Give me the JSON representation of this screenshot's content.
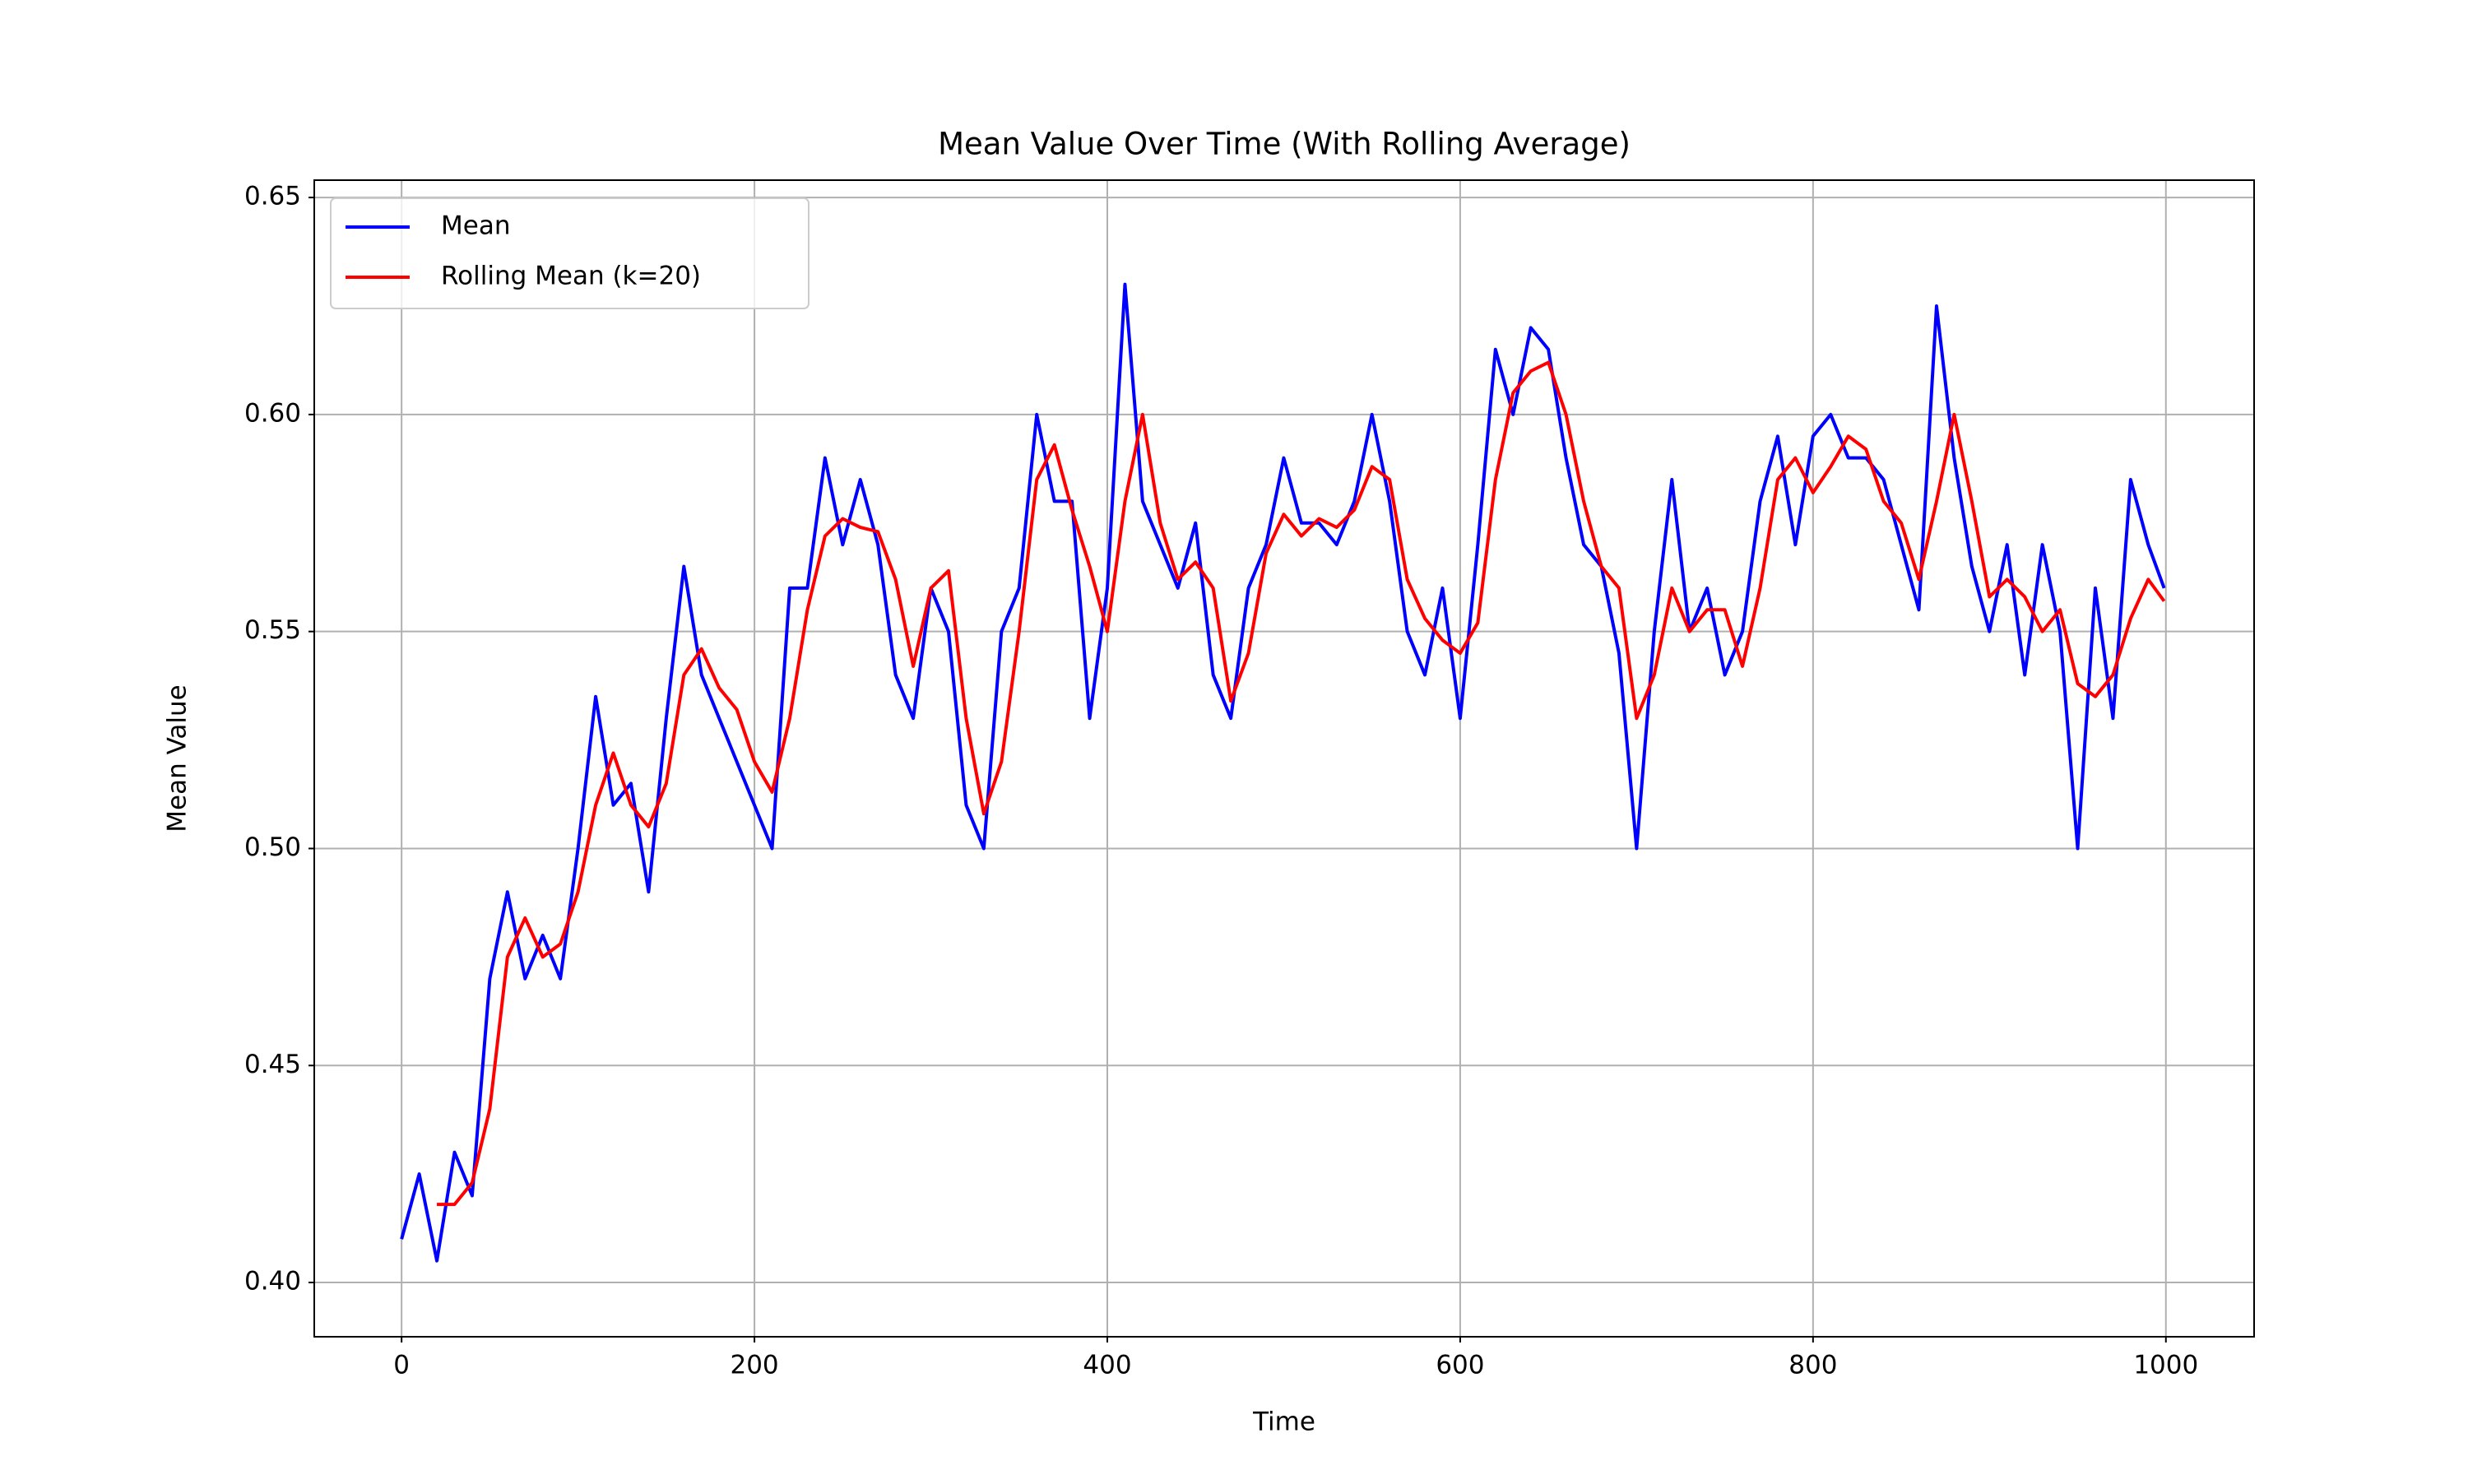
{
  "chart_data": {
    "type": "line",
    "title": "Mean Value Over Time (With Rolling Average)",
    "xlabel": "Time",
    "ylabel": "Mean Value",
    "x": [
      0,
      10,
      20,
      30,
      40,
      50,
      60,
      70,
      80,
      90,
      100,
      110,
      120,
      130,
      140,
      150,
      160,
      170,
      180,
      190,
      200,
      210,
      220,
      230,
      240,
      250,
      260,
      270,
      280,
      290,
      300,
      310,
      320,
      330,
      340,
      350,
      360,
      370,
      380,
      390,
      400,
      410,
      420,
      430,
      440,
      450,
      460,
      470,
      480,
      490,
      500,
      510,
      520,
      530,
      540,
      550,
      560,
      570,
      580,
      590,
      600,
      610,
      620,
      630,
      640,
      650,
      660,
      670,
      680,
      690,
      700,
      710,
      720,
      730,
      740,
      750,
      760,
      770,
      780,
      790,
      800,
      810,
      820,
      830,
      840,
      850,
      860,
      870,
      880,
      890,
      900,
      910,
      920,
      930,
      940,
      950,
      960,
      970,
      980,
      990,
      999
    ],
    "series": [
      {
        "name": "Mean",
        "color": "#0000ff",
        "values": [
          0.41,
          0.425,
          0.405,
          0.43,
          0.42,
          0.47,
          0.49,
          0.47,
          0.48,
          0.47,
          0.5,
          0.535,
          0.51,
          0.515,
          0.49,
          0.53,
          0.565,
          0.54,
          0.53,
          0.52,
          0.51,
          0.5,
          0.56,
          0.56,
          0.59,
          0.57,
          0.585,
          0.57,
          0.54,
          0.53,
          0.56,
          0.55,
          0.51,
          0.5,
          0.55,
          0.56,
          0.6,
          0.58,
          0.58,
          0.53,
          0.56,
          0.63,
          0.58,
          0.57,
          0.56,
          0.575,
          0.54,
          0.53,
          0.56,
          0.57,
          0.59,
          0.575,
          0.575,
          0.57,
          0.58,
          0.6,
          0.58,
          0.55,
          0.54,
          0.56,
          0.53,
          0.57,
          0.615,
          0.6,
          0.62,
          0.615,
          0.59,
          0.57,
          0.565,
          0.545,
          0.5,
          0.55,
          0.585,
          0.55,
          0.56,
          0.54,
          0.55,
          0.58,
          0.595,
          0.57,
          0.595,
          0.6,
          0.59,
          0.59,
          0.585,
          0.57,
          0.555,
          0.625,
          0.59,
          0.565,
          0.55,
          0.57,
          0.54,
          0.57,
          0.55,
          0.5,
          0.56,
          0.53,
          0.585,
          0.57,
          0.56
        ]
      },
      {
        "name": "Rolling Mean (k=20)",
        "color": "#ff0000",
        "values": [
          null,
          null,
          0.418,
          0.418,
          0.423,
          0.44,
          0.475,
          0.484,
          0.475,
          0.478,
          0.49,
          0.51,
          0.522,
          0.51,
          0.505,
          0.515,
          0.54,
          0.546,
          0.537,
          0.532,
          0.52,
          0.513,
          0.53,
          0.555,
          0.572,
          0.576,
          0.574,
          0.573,
          0.562,
          0.542,
          0.56,
          0.564,
          0.53,
          0.508,
          0.52,
          0.55,
          0.585,
          0.593,
          0.578,
          0.565,
          0.55,
          0.58,
          0.6,
          0.575,
          0.562,
          0.566,
          0.56,
          0.534,
          0.545,
          0.568,
          0.577,
          0.572,
          0.576,
          0.574,
          0.578,
          0.588,
          0.585,
          0.562,
          0.553,
          0.548,
          0.545,
          0.552,
          0.585,
          0.605,
          0.61,
          0.612,
          0.6,
          0.58,
          0.565,
          0.56,
          0.53,
          0.54,
          0.56,
          0.55,
          0.555,
          0.555,
          0.542,
          0.56,
          0.585,
          0.59,
          0.582,
          0.588,
          0.595,
          0.592,
          0.58,
          0.575,
          0.562,
          0.58,
          0.6,
          0.58,
          0.558,
          0.562,
          0.558,
          0.55,
          0.555,
          0.538,
          0.535,
          0.54,
          0.553,
          0.562,
          0.557
        ]
      }
    ],
    "xlim": [
      -49.5,
      1050
    ],
    "ylim": [
      0.3875,
      0.654
    ],
    "xticks": [
      0,
      200,
      400,
      600,
      800,
      1000
    ],
    "yticks": [
      {
        "value": 0.4,
        "label": "0.40"
      },
      0.45,
      {
        "value": 0.5,
        "label": "0.50"
      },
      0.55,
      {
        "value": 0.6,
        "label": "0.60"
      },
      0.65
    ],
    "grid": true,
    "legend": "upper left"
  }
}
